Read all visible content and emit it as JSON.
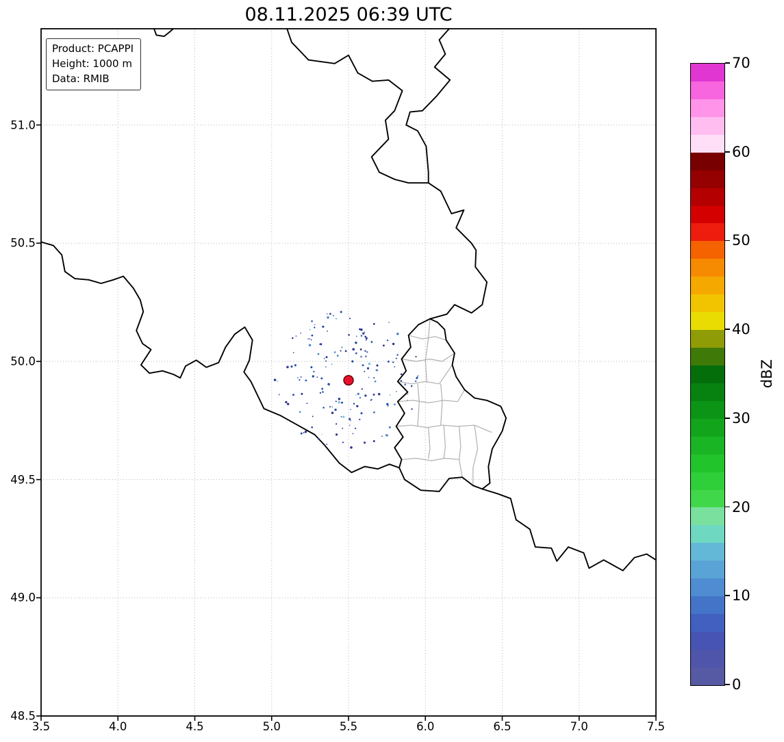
{
  "title": "08.11.2025 06:39 UTC",
  "info_box": {
    "lines": [
      "Product: PCAPPI",
      "Height: 1000 m",
      "Data: RMIB"
    ]
  },
  "chart_data": {
    "type": "map",
    "subtype": "weather-radar-reflectivity",
    "title": "08.11.2025 06:39 UTC",
    "product": "PCAPPI",
    "height": "1000 m",
    "data_source": "RMIB",
    "x_axis": {
      "min": 3.5,
      "max": 7.5,
      "tick_values": [
        3.5,
        4.0,
        4.5,
        5.0,
        5.5,
        6.0,
        6.5,
        7.0,
        7.5
      ],
      "tick_labels": [
        "3.5",
        "4.0",
        "4.5",
        "5.0",
        "5.5",
        "6.0",
        "6.5",
        "7.0",
        "7.5"
      ]
    },
    "y_axis": {
      "min": 48.5,
      "max": 51.407,
      "tick_values": [
        48.5,
        49.0,
        49.5,
        50.0,
        50.5,
        51.0
      ],
      "tick_labels": [
        "48.5",
        "49.0",
        "49.5",
        "50.0",
        "50.5",
        "51.0"
      ]
    },
    "grid": {
      "style": "dotted",
      "color": "#b5b5b5"
    },
    "radar_site": {
      "lon": 5.5,
      "lat": 49.92,
      "fill": "#e8112d",
      "edge": "#5c0000",
      "radius_px": 7
    },
    "echoes": {
      "description": "sparse weak scattered echoes (0-10 dBZ) in a ring around the radar site",
      "count": 170,
      "seed": 97531,
      "min_radius_px": 20,
      "max_radius_px": 108,
      "colors": [
        "#2a3590",
        "#1d4aa8",
        "#4d83c4",
        "#6fc0d8"
      ]
    },
    "colorbar": {
      "label": "dBZ",
      "min": 0,
      "max": 70,
      "tick_values": [
        0,
        10,
        20,
        30,
        40,
        50,
        60,
        70
      ],
      "tick_labels": [
        "0",
        "10",
        "20",
        "30",
        "40",
        "50",
        "60",
        "70"
      ],
      "colors": [
        "#5659a3",
        "#4f55ab",
        "#4754b4",
        "#4260bf",
        "#4474c8",
        "#4f8cd1",
        "#5aa3d6",
        "#63b8d8",
        "#6fd8c0",
        "#79e09e",
        "#41d74b",
        "#2ecf38",
        "#22c42c",
        "#1ab524",
        "#12a51c",
        "#0c9416",
        "#078210",
        "#046e0b",
        "#3f7a08",
        "#8f9c06",
        "#e8dc02",
        "#f2c400",
        "#f5a800",
        "#f68a00",
        "#f56200",
        "#ee1c0c",
        "#d40000",
        "#b40000",
        "#950000",
        "#780000",
        "#ffdff7",
        "#ffbdf0",
        "#ff94e9",
        "#f765df",
        "#e136d1"
      ]
    },
    "colors": {
      "border": "#000000",
      "region_border": "#b0b0b0",
      "background": "#ffffff"
    },
    "borders": {
      "countries": [
        [
          [
            4.235,
            51.407
          ],
          [
            4.25,
            51.38
          ],
          [
            4.3,
            51.375
          ],
          [
            4.33,
            51.39
          ],
          [
            4.36,
            51.407
          ]
        ],
        [
          [
            6.155,
            51.407
          ],
          [
            6.09,
            51.36
          ],
          [
            6.13,
            51.3
          ],
          [
            6.06,
            51.245
          ],
          [
            6.16,
            51.19
          ],
          [
            6.07,
            51.12
          ],
          [
            5.98,
            51.06
          ],
          [
            5.9,
            51.055
          ],
          [
            5.875,
            51.0
          ],
          [
            5.95,
            50.975
          ],
          [
            6.005,
            50.91
          ],
          [
            6.02,
            50.8
          ],
          [
            6.02,
            50.755
          ]
        ],
        [
          [
            6.02,
            50.755
          ],
          [
            5.89,
            50.755
          ],
          [
            5.8,
            50.77
          ],
          [
            5.7,
            50.8
          ],
          [
            5.65,
            50.865
          ],
          [
            5.76,
            50.94
          ],
          [
            5.74,
            51.02
          ],
          [
            5.8,
            51.06
          ],
          [
            5.85,
            51.145
          ],
          [
            5.76,
            51.19
          ],
          [
            5.655,
            51.185
          ],
          [
            5.56,
            51.22
          ],
          [
            5.5,
            51.295
          ],
          [
            5.41,
            51.26
          ],
          [
            5.24,
            51.275
          ],
          [
            5.13,
            51.35
          ],
          [
            5.1,
            51.407
          ]
        ],
        [
          [
            6.02,
            50.755
          ],
          [
            6.1,
            50.72
          ],
          [
            6.17,
            50.625
          ],
          [
            6.25,
            50.64
          ],
          [
            6.2,
            50.565
          ],
          [
            6.3,
            50.5
          ],
          [
            6.33,
            50.47
          ],
          [
            6.325,
            50.4
          ],
          [
            6.4,
            50.335
          ],
          [
            6.37,
            50.24
          ],
          [
            6.3,
            50.205
          ],
          [
            6.19,
            50.24
          ],
          [
            6.14,
            50.2
          ],
          [
            6.03,
            50.18
          ]
        ],
        [
          [
            6.03,
            50.18
          ],
          [
            5.955,
            50.155
          ],
          [
            5.89,
            50.11
          ],
          [
            5.905,
            50.06
          ],
          [
            5.845,
            50.01
          ],
          [
            5.875,
            49.96
          ],
          [
            5.82,
            49.915
          ],
          [
            5.885,
            49.87
          ],
          [
            5.82,
            49.83
          ],
          [
            5.865,
            49.78
          ],
          [
            5.81,
            49.725
          ],
          [
            5.855,
            49.68
          ],
          [
            5.8,
            49.635
          ],
          [
            5.845,
            49.585
          ],
          [
            5.83,
            49.55
          ],
          [
            5.865,
            49.5
          ],
          [
            5.97,
            49.455
          ],
          [
            6.09,
            49.45
          ],
          [
            6.155,
            49.505
          ],
          [
            6.24,
            49.51
          ],
          [
            6.31,
            49.475
          ],
          [
            6.37,
            49.46
          ],
          [
            6.42,
            49.485
          ],
          [
            6.41,
            49.555
          ],
          [
            6.435,
            49.63
          ],
          [
            6.5,
            49.705
          ],
          [
            6.525,
            49.76
          ],
          [
            6.49,
            49.81
          ],
          [
            6.4,
            49.835
          ],
          [
            6.32,
            49.845
          ],
          [
            6.255,
            49.88
          ],
          [
            6.2,
            49.935
          ],
          [
            6.175,
            49.985
          ],
          [
            6.19,
            50.035
          ],
          [
            6.135,
            50.09
          ],
          [
            6.125,
            50.135
          ],
          [
            6.08,
            50.165
          ],
          [
            6.03,
            50.18
          ]
        ],
        [
          [
            6.37,
            49.46
          ],
          [
            6.47,
            49.44
          ],
          [
            6.555,
            49.42
          ],
          [
            6.59,
            49.33
          ],
          [
            6.68,
            49.29
          ],
          [
            6.715,
            49.215
          ],
          [
            6.82,
            49.21
          ],
          [
            6.855,
            49.155
          ],
          [
            6.93,
            49.215
          ],
          [
            7.03,
            49.19
          ],
          [
            7.065,
            49.125
          ],
          [
            7.16,
            49.16
          ],
          [
            7.285,
            49.115
          ],
          [
            7.36,
            49.17
          ],
          [
            7.44,
            49.185
          ],
          [
            7.5,
            49.16
          ]
        ],
        [
          [
            3.5,
            50.505
          ],
          [
            3.58,
            50.49
          ],
          [
            3.635,
            50.45
          ],
          [
            3.655,
            50.38
          ],
          [
            3.72,
            50.35
          ],
          [
            3.81,
            50.345
          ],
          [
            3.89,
            50.33
          ],
          [
            3.97,
            50.345
          ],
          [
            4.035,
            50.36
          ],
          [
            4.1,
            50.31
          ],
          [
            4.145,
            50.26
          ],
          [
            4.165,
            50.21
          ],
          [
            4.12,
            50.13
          ],
          [
            4.16,
            50.075
          ],
          [
            4.215,
            50.05
          ],
          [
            4.15,
            49.985
          ],
          [
            4.205,
            49.95
          ],
          [
            4.29,
            49.96
          ],
          [
            4.36,
            49.945
          ],
          [
            4.405,
            49.93
          ],
          [
            4.44,
            49.98
          ],
          [
            4.51,
            50.005
          ],
          [
            4.575,
            49.975
          ],
          [
            4.655,
            49.995
          ],
          [
            4.7,
            50.06
          ],
          [
            4.76,
            50.115
          ],
          [
            4.825,
            50.145
          ],
          [
            4.875,
            50.09
          ],
          [
            4.855,
            50.005
          ],
          [
            4.82,
            49.955
          ],
          [
            4.865,
            49.915
          ],
          [
            4.95,
            49.8
          ],
          [
            5.06,
            49.77
          ],
          [
            5.17,
            49.73
          ],
          [
            5.28,
            49.69
          ],
          [
            5.345,
            49.645
          ],
          [
            5.44,
            49.57
          ],
          [
            5.52,
            49.53
          ],
          [
            5.605,
            49.555
          ],
          [
            5.69,
            49.545
          ],
          [
            5.765,
            49.565
          ],
          [
            5.83,
            49.55
          ]
        ]
      ],
      "regions": [
        [
          [
            5.89,
            50.11
          ],
          [
            5.98,
            50.095
          ],
          [
            6.065,
            50.105
          ],
          [
            6.135,
            50.09
          ]
        ],
        [
          [
            5.845,
            50.01
          ],
          [
            5.94,
            50.0
          ],
          [
            6.03,
            50.01
          ],
          [
            6.11,
            50.0
          ],
          [
            6.19,
            50.035
          ]
        ],
        [
          [
            5.82,
            49.915
          ],
          [
            5.91,
            49.905
          ],
          [
            6.0,
            49.915
          ],
          [
            6.09,
            49.905
          ],
          [
            6.175,
            49.985
          ]
        ],
        [
          [
            5.82,
            49.83
          ],
          [
            5.92,
            49.835
          ],
          [
            6.02,
            49.825
          ],
          [
            6.12,
            49.835
          ],
          [
            6.21,
            49.83
          ],
          [
            6.255,
            49.88
          ]
        ],
        [
          [
            5.81,
            49.725
          ],
          [
            5.91,
            49.73
          ],
          [
            6.01,
            49.72
          ],
          [
            6.11,
            49.73
          ],
          [
            6.21,
            49.725
          ],
          [
            6.32,
            49.73
          ],
          [
            6.43,
            49.7
          ]
        ],
        [
          [
            5.845,
            49.585
          ],
          [
            5.94,
            49.59
          ],
          [
            6.04,
            49.58
          ],
          [
            6.13,
            49.59
          ],
          [
            6.22,
            49.585
          ],
          [
            6.24,
            49.51
          ]
        ],
        [
          [
            6.03,
            50.18
          ],
          [
            6.02,
            50.1
          ],
          [
            6.0,
            50.005
          ],
          [
            6.01,
            49.91
          ]
        ],
        [
          [
            6.1,
            49.905
          ],
          [
            6.11,
            49.83
          ],
          [
            6.1,
            49.73
          ]
        ],
        [
          [
            5.95,
            49.905
          ],
          [
            5.96,
            49.83
          ],
          [
            5.95,
            49.725
          ]
        ],
        [
          [
            6.02,
            49.72
          ],
          [
            6.03,
            49.63
          ],
          [
            6.02,
            49.59
          ]
        ],
        [
          [
            6.12,
            49.73
          ],
          [
            6.13,
            49.64
          ],
          [
            6.12,
            49.59
          ]
        ],
        [
          [
            6.22,
            49.725
          ],
          [
            6.23,
            49.64
          ],
          [
            6.22,
            49.585
          ]
        ],
        [
          [
            6.32,
            49.73
          ],
          [
            6.34,
            49.63
          ],
          [
            6.31,
            49.55
          ],
          [
            6.31,
            49.475
          ]
        ]
      ]
    }
  }
}
